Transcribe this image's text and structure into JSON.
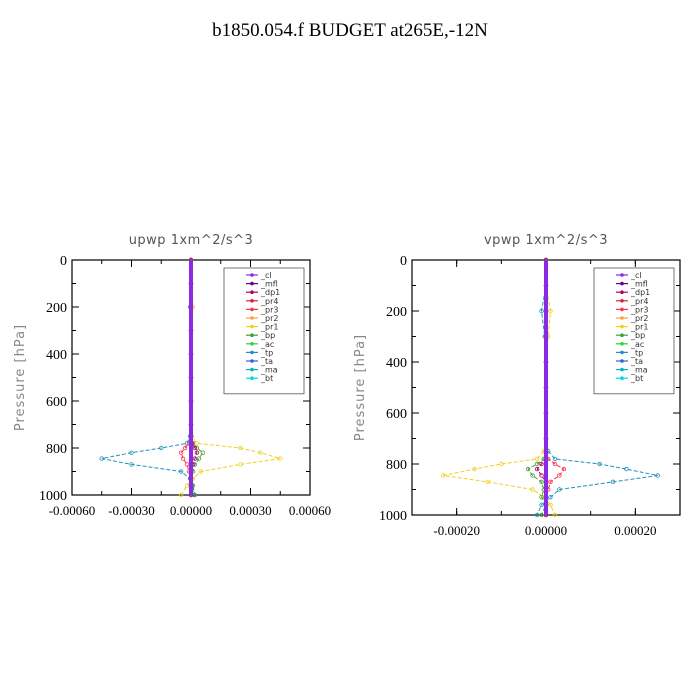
{
  "figure": {
    "title": "b1850.054.f  BUDGET at265E,-12N"
  },
  "legend_entries": [
    "_cl",
    "_mfl",
    "_dp1",
    "_pr4",
    "_pr3",
    "_pr2",
    "_pr1",
    "_bp",
    "_ac",
    "_tp",
    "_ta",
    "_ma",
    "_bt"
  ],
  "series_colors": {
    "_cl": "#8a2be2",
    "_mfl": "#6a0080",
    "_dp1": "#b0006a",
    "_pr4": "#e0203a",
    "_pr3": "#ff3050",
    "_pr2": "#ffa040",
    "_pr1": "#f0d020",
    "_bp": "#40a030",
    "_ac": "#30d040",
    "_tp": "#2090c0",
    "_ta": "#3060e0",
    "_ma": "#00b8b8",
    "_bt": "#00d8e0"
  },
  "chart_data": [
    {
      "type": "line",
      "title": "upwp   1xm^2/s^3",
      "ylabel": "Pressure [hPa]",
      "ylim": [
        1000,
        0
      ],
      "xlim": [
        -0.0006,
        0.0006
      ],
      "xticks": [
        -0.0006,
        -0.0003,
        0.0,
        0.0003,
        0.0006
      ],
      "xtick_labels": [
        "-0.00060",
        "-0.00030",
        "0.00000",
        "0.00030",
        "0.00060"
      ],
      "yticks": [
        0,
        200,
        400,
        600,
        800,
        1000
      ],
      "ytick_labels": [
        "0",
        "200",
        "400",
        "600",
        "800",
        "1000"
      ],
      "legend": "top-right",
      "levels": [
        0,
        100,
        200,
        300,
        400,
        500,
        600,
        700,
        750,
        780,
        800,
        820,
        845,
        870,
        900,
        930,
        960,
        1000
      ],
      "series": [
        {
          "name": "_pr1",
          "values": [
            0,
            0,
            1e-05,
            0,
            0,
            0,
            0,
            0,
            5e-06,
            3e-05,
            0.00025,
            0.00035,
            0.00045,
            0.00025,
            5e-05,
            1e-05,
            -2e-05,
            -5e-05
          ]
        },
        {
          "name": "_tp",
          "values": [
            0,
            0,
            -5e-06,
            0,
            0,
            0,
            0,
            0,
            -5e-06,
            -2e-05,
            -0.00015,
            -0.0003,
            -0.00045,
            -0.0003,
            -5e-05,
            -5e-06,
            5e-06,
            1.5e-05
          ]
        },
        {
          "name": "_pr3",
          "values": [
            0,
            0,
            0,
            0,
            0,
            0,
            0,
            0,
            0,
            -1e-05,
            -3e-05,
            -5e-05,
            -4e-05,
            -2e-05,
            -1e-05,
            0,
            0,
            0
          ]
        },
        {
          "name": "_bp",
          "values": [
            0,
            0,
            0,
            0,
            0,
            0,
            0,
            0,
            0,
            1e-05,
            3e-05,
            6e-05,
            4e-05,
            2e-05,
            1e-05,
            0,
            1e-05,
            2e-05
          ]
        },
        {
          "name": "_dp1",
          "values": [
            0,
            0,
            0,
            0,
            0,
            0,
            0,
            0,
            0,
            5e-06,
            2e-05,
            3e-05,
            2e-05,
            1e-05,
            0,
            0,
            0,
            0
          ]
        },
        {
          "name": "_cl",
          "values": [
            0,
            0,
            0,
            0,
            0,
            0,
            0,
            0,
            0,
            0,
            0,
            0,
            0,
            0,
            0,
            0,
            0,
            0
          ]
        }
      ]
    },
    {
      "type": "line",
      "title": "vpwp   1xm^2/s^3",
      "ylabel": "Pressure [hPa]",
      "ylim": [
        1000,
        0
      ],
      "xlim": [
        -0.0003,
        0.0003
      ],
      "xticks": [
        -0.0002,
        0.0,
        0.0002
      ],
      "xtick_labels": [
        "-0.00020",
        "0.00000",
        "0.00020"
      ],
      "yticks": [
        0,
        200,
        400,
        600,
        800,
        1000
      ],
      "ytick_labels": [
        "0",
        "200",
        "400",
        "600",
        "800",
        "1000"
      ],
      "legend": "top-right",
      "levels": [
        0,
        100,
        200,
        300,
        400,
        500,
        600,
        700,
        750,
        780,
        800,
        820,
        845,
        870,
        900,
        930,
        960,
        1000
      ],
      "series": [
        {
          "name": "_tp",
          "values": [
            0,
            0,
            -1e-05,
            -3e-06,
            0,
            0,
            0,
            0,
            5e-06,
            2e-05,
            0.00012,
            0.00018,
            0.00025,
            0.00015,
            3e-05,
            1e-05,
            -1e-05,
            -2e-05
          ]
        },
        {
          "name": "_pr1",
          "values": [
            0,
            0,
            1e-05,
            5e-06,
            0,
            0,
            0,
            0,
            -5e-06,
            -2e-05,
            -0.0001,
            -0.00016,
            -0.00023,
            -0.00013,
            -3e-05,
            -5e-06,
            1e-05,
            2e-05
          ]
        },
        {
          "name": "_pr3",
          "values": [
            0,
            0,
            0,
            0,
            0,
            0,
            0,
            0,
            0,
            5e-06,
            2e-05,
            4e-05,
            3e-05,
            1e-05,
            5e-06,
            0,
            0,
            0
          ]
        },
        {
          "name": "_bp",
          "values": [
            0,
            0,
            0,
            0,
            0,
            0,
            0,
            0,
            0,
            -5e-06,
            -2e-05,
            -4e-05,
            -3e-05,
            -1e-05,
            -5e-06,
            -1e-05,
            0,
            -1e-05
          ]
        },
        {
          "name": "_dp1",
          "values": [
            0,
            0,
            0,
            0,
            0,
            0,
            0,
            0,
            0,
            0,
            -1e-05,
            -2e-05,
            -1e-05,
            0,
            0,
            0,
            0,
            0
          ]
        },
        {
          "name": "_cl",
          "values": [
            0,
            0,
            0,
            0,
            0,
            0,
            0,
            0,
            0,
            0,
            0,
            0,
            0,
            0,
            0,
            0,
            0,
            0
          ]
        }
      ]
    }
  ]
}
